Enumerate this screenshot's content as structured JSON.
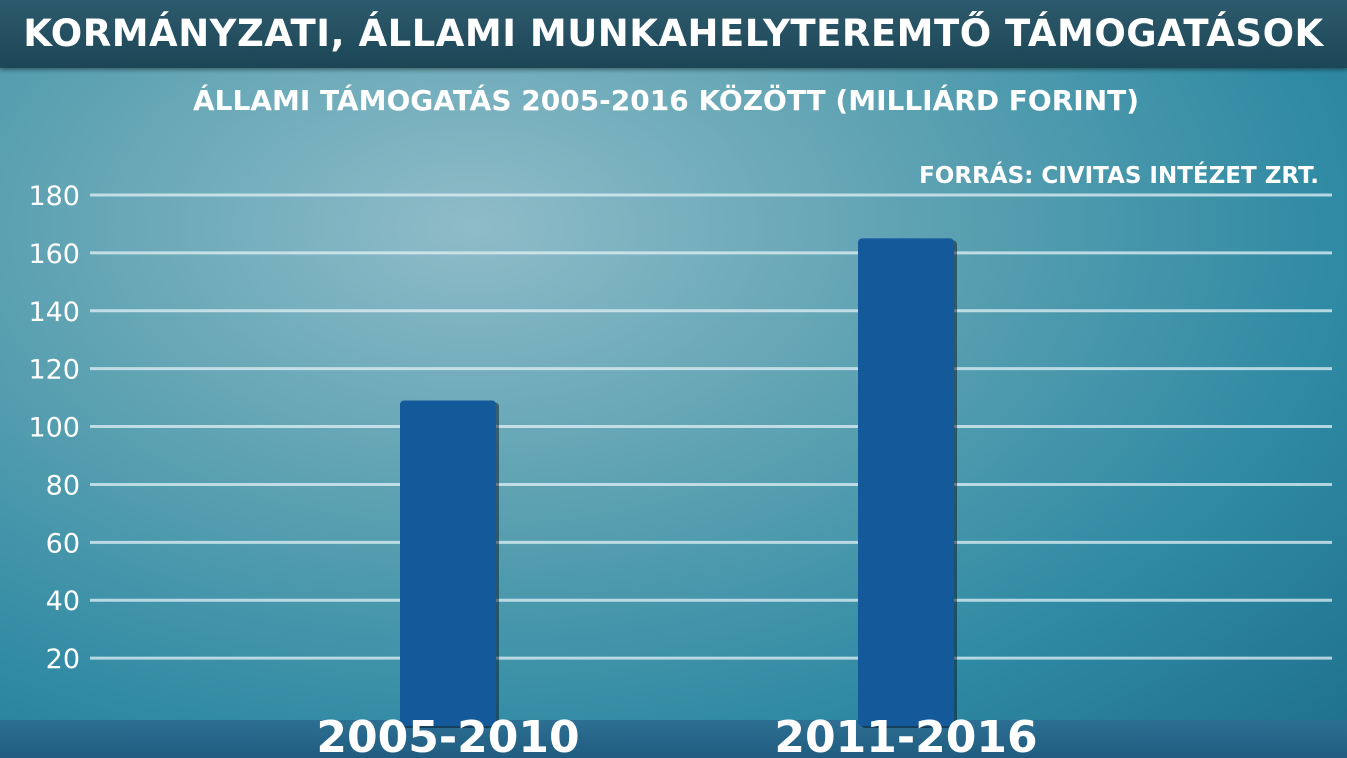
{
  "title": "KORMÁNYZATI, ÁLLAMI MUNKAHELYTEREMTŐ TÁMOGATÁSOK",
  "chart_data": {
    "type": "bar",
    "title": "KORMÁNYZATI, ÁLLAMI MUNKAHELYTEREMTŐ TÁMOGATÁSOK",
    "subtitle": "ÁLLAMI TÁMOGATÁS 2005-2016 KÖZÖTT (MILLIÁRD FORINT)",
    "source": "FORRÁS: CIVITAS INTÉZET ZRT.",
    "categories": [
      "2005-2010",
      "2011-2016"
    ],
    "values": [
      109,
      165
    ],
    "ylim": [
      0,
      180
    ],
    "yticks": [
      20,
      40,
      60,
      80,
      100,
      120,
      140,
      160,
      180
    ],
    "grid": true,
    "bar_color": "#14599a",
    "xlabel": "",
    "ylabel": ""
  }
}
